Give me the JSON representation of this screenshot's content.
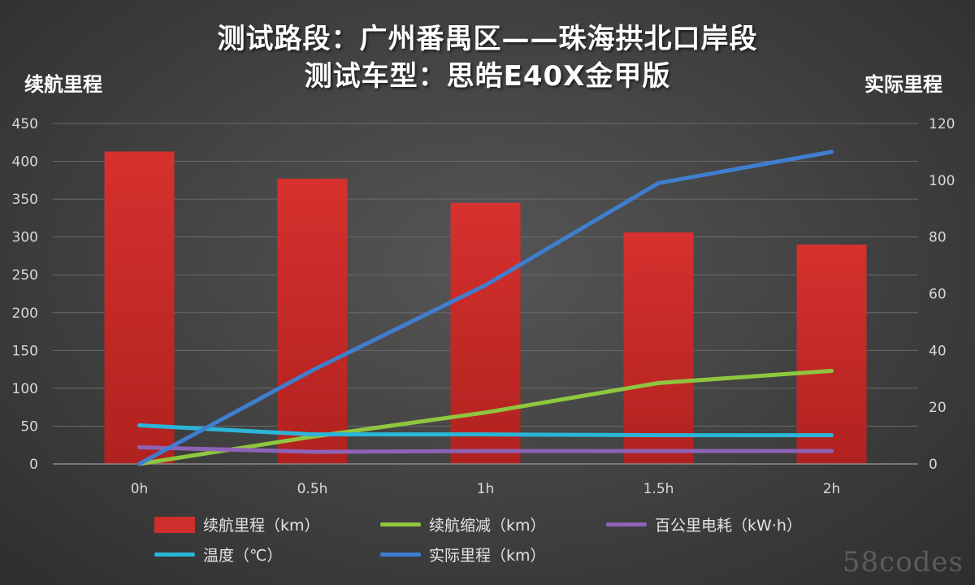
{
  "chart_data": {
    "type": "bar",
    "title": "测试路段：广州番禺区——珠海拱北口岸段",
    "subtitle": "测试车型：思皓E40X金甲版",
    "ylabel_left": "续航里程",
    "ylabel_right": "实际里程",
    "categories": [
      "0h",
      "0.5h",
      "1h",
      "1.5h",
      "2h"
    ],
    "ylim_left": [
      0,
      450
    ],
    "yticks_left": [
      0,
      50,
      100,
      150,
      200,
      250,
      300,
      350,
      400,
      450
    ],
    "ylim_right": [
      0,
      120
    ],
    "yticks_right": [
      0,
      20,
      40,
      60,
      80,
      100,
      120
    ],
    "grid": true,
    "legend_position": "bottom",
    "series": [
      {
        "name": "续航里程（km）",
        "kind": "bar",
        "axis": "left",
        "color": "#cc2f2c",
        "values": [
          413,
          377,
          345,
          306,
          290
        ]
      },
      {
        "name": "续航缩减（km）",
        "kind": "line",
        "axis": "left",
        "color": "#8fc63f",
        "values": [
          0,
          36,
          68,
          107,
          123
        ]
      },
      {
        "name": "百公里电耗（kW·h）",
        "kind": "line",
        "axis": "left",
        "color": "#8e62b6",
        "values": [
          22,
          16,
          17,
          17,
          17
        ]
      },
      {
        "name": "温度（℃）",
        "kind": "line",
        "axis": "left",
        "color": "#2bb5d8",
        "values": [
          51,
          39,
          39,
          38,
          38
        ]
      },
      {
        "name": "实际里程（km）",
        "kind": "line",
        "axis": "right",
        "color": "#3f7ecf",
        "values": [
          0,
          33,
          63,
          99,
          110
        ]
      }
    ]
  },
  "watermark": "58codes"
}
